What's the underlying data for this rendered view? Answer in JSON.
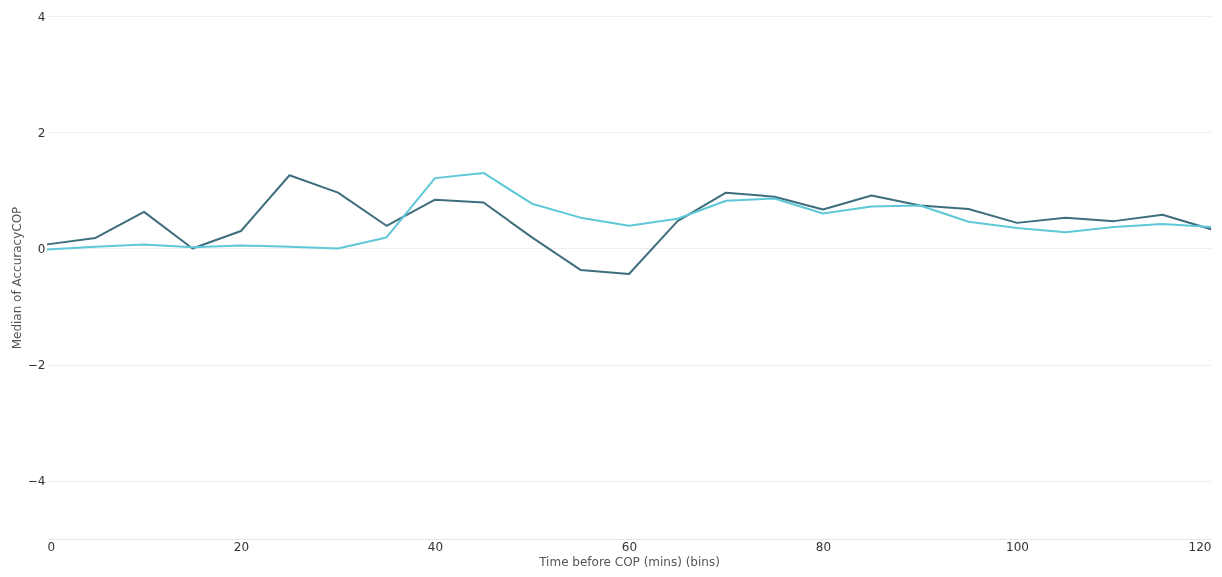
{
  "chart_data": {
    "type": "line",
    "xlabel": "Time before COP (mins) (bins)",
    "ylabel": "Median of AccuracyCOP",
    "x": [
      0,
      5,
      10,
      15,
      20,
      25,
      30,
      35,
      40,
      45,
      50,
      55,
      60,
      65,
      70,
      75,
      80,
      85,
      90,
      95,
      100,
      105,
      110,
      115,
      120
    ],
    "series": [
      {
        "color": "#3e6e7c",
        "values": [
          0.07,
          0.18,
          0.63,
          0.0,
          0.3,
          1.26,
          0.96,
          0.39,
          0.84,
          0.79,
          0.19,
          -0.37,
          -0.44,
          0.47,
          0.96,
          0.89,
          0.67,
          0.91,
          0.74,
          0.68,
          0.44,
          0.53,
          0.47,
          0.58,
          0.33
        ]
      },
      {
        "color": "#5ec8d8",
        "values": [
          -0.02,
          0.03,
          0.07,
          0.02,
          0.05,
          0.03,
          0.0,
          0.19,
          1.21,
          1.3,
          0.77,
          0.53,
          0.39,
          0.51,
          0.82,
          0.86,
          0.6,
          0.72,
          0.74,
          0.46,
          0.35,
          0.28,
          0.37,
          0.42,
          0.37
        ]
      }
    ],
    "xlim": [
      0,
      120
    ],
    "xticks": [
      0,
      20,
      40,
      60,
      80,
      100,
      120
    ],
    "ylim": [
      -5,
      4
    ],
    "yticks": [
      -4,
      -2,
      0,
      2,
      4
    ],
    "grid": "y",
    "legend": false,
    "marker": "none",
    "line_style": "solid"
  }
}
